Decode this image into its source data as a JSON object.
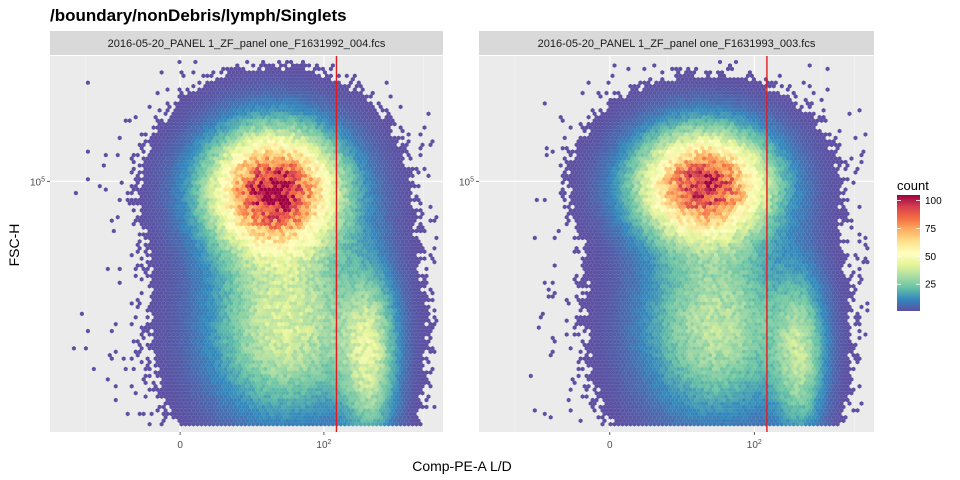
{
  "chart_data": {
    "type": "hexbin-density",
    "title": "/boundary/nonDebris/lymph/Singlets",
    "xlabel": "Comp-PE-A L/D",
    "ylabel": "FSC-H",
    "x_ticks": [
      {
        "value": 0,
        "label": "0"
      },
      {
        "value": 100,
        "label": "10",
        "sup": "2"
      }
    ],
    "y_ticks": [
      {
        "value": 100000,
        "label": "10",
        "sup": "5"
      }
    ],
    "gate_x": 130,
    "legend": {
      "title": "count",
      "ticks": [
        {
          "value": 100,
          "label": "100"
        },
        {
          "value": 75,
          "label": "75"
        },
        {
          "value": 50,
          "label": "50"
        },
        {
          "value": 25,
          "label": "25"
        }
      ],
      "range": [
        1,
        105
      ],
      "colors": [
        "#5e4fa2",
        "#3288bd",
        "#66c2a5",
        "#abdda4",
        "#e6f598",
        "#ffffbf",
        "#fee08b",
        "#fdae61",
        "#f46d43",
        "#d53e4f",
        "#9e0142"
      ]
    },
    "gate_color": "#e41a1c",
    "panels": [
      {
        "strip": "2016-05-20_PANEL 1_ZF_panel one_F1631992_004.fcs",
        "populations": [
          {
            "x": 35,
            "y": 95000,
            "sx": 55,
            "sy": 24000,
            "weight": 1.0,
            "peak": 100
          },
          {
            "x": 45,
            "y": 45000,
            "sx": 85,
            "sy": 18000,
            "weight": 0.55,
            "peak": 40
          },
          {
            "x": 260,
            "y": 38000,
            "sx": 120,
            "sy": 14000,
            "weight": 0.5,
            "peak": 35
          }
        ]
      },
      {
        "strip": "2016-05-20_PANEL 1_ZF_panel one_F1631993_003.fcs",
        "populations": [
          {
            "x": 35,
            "y": 98000,
            "sx": 55,
            "sy": 22000,
            "weight": 1.0,
            "peak": 95
          },
          {
            "x": 45,
            "y": 45000,
            "sx": 80,
            "sy": 18000,
            "weight": 0.5,
            "peak": 35
          },
          {
            "x": 260,
            "y": 38000,
            "sx": 110,
            "sy": 13000,
            "weight": 0.35,
            "peak": 30
          }
        ]
      }
    ]
  }
}
